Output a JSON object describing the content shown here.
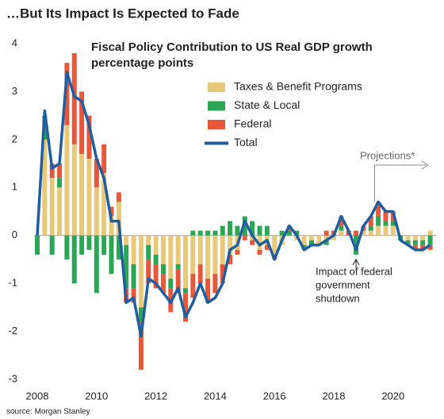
{
  "chart_data": {
    "type": "bar",
    "title": "…But Its Impact Is Expected to Fade",
    "subtitle": [
      "Fiscal Policy Contribution to US Real GDP growth",
      "percentage points"
    ],
    "source": "source: Morgan Stanley",
    "categories": [
      "2008",
      null,
      null,
      null,
      null,
      null,
      null,
      null,
      "2010",
      null,
      null,
      null,
      null,
      null,
      null,
      null,
      "2012",
      null,
      null,
      null,
      null,
      null,
      null,
      null,
      "2014",
      null,
      null,
      null,
      null,
      null,
      null,
      null,
      "2016",
      null,
      null,
      null,
      null,
      null,
      null,
      null,
      "2018",
      null,
      null,
      null,
      null,
      null,
      null,
      null,
      "2020",
      null,
      null,
      null,
      null,
      null
    ],
    "ylim": [
      -3,
      4
    ],
    "yticks": [
      -3,
      -2,
      -1,
      0,
      1,
      2,
      3,
      4
    ],
    "series": [
      {
        "name": "Taxes & Benefit Programs",
        "type": "bar",
        "color": "#e8c97a",
        "values": [
          0,
          2.0,
          1.2,
          1.0,
          2.3,
          1.9,
          1.7,
          1.6,
          1.0,
          1.3,
          0.4,
          0.7,
          -0.2,
          -0.6,
          -1.5,
          -0.2,
          -0.4,
          -0.6,
          -0.9,
          -0.6,
          -1.1,
          -0.8,
          -0.6,
          -0.9,
          -0.8,
          -0.6,
          -0.4,
          -0.3,
          0.0,
          -0.1,
          -0.3,
          -0.2,
          -0.4,
          -0.2,
          0.0,
          -0.1,
          -0.2,
          -0.1,
          -0.2,
          -0.1,
          -0.1,
          0.1,
          0.0,
          0.0,
          0.1,
          0.1,
          0.2,
          0.2,
          0.2,
          0.0,
          -0.1,
          -0.1,
          -0.1,
          0.1
        ]
      },
      {
        "name": "State & Local",
        "type": "bar",
        "color": "#2aa654",
        "values": [
          -0.4,
          0.2,
          -0.4,
          0.2,
          -0.5,
          -1.0,
          -0.4,
          -0.3,
          -1.2,
          -0.4,
          -0.8,
          -0.5,
          -0.9,
          -0.5,
          -0.3,
          -0.3,
          -0.2,
          -0.2,
          -0.2,
          -0.1,
          -0.1,
          0.1,
          0.1,
          0.1,
          0.1,
          0.2,
          0.3,
          0.2,
          0.4,
          0.3,
          0.2,
          0.2,
          0.0,
          0.1,
          0.1,
          0.1,
          -0.1,
          -0.1,
          0.0,
          -0.1,
          0.0,
          0.1,
          0.0,
          -0.4,
          0.0,
          0.1,
          0.2,
          0.1,
          0.1,
          -0.1,
          -0.1,
          -0.1,
          -0.1,
          -0.2
        ]
      },
      {
        "name": "Federal",
        "type": "bar",
        "color": "#e8573a",
        "values": [
          0,
          0.3,
          0.3,
          0.3,
          1.3,
          1.9,
          1.3,
          0.9,
          0.6,
          0.6,
          0.2,
          0.2,
          -0.3,
          -0.3,
          -1.0,
          -0.5,
          -0.5,
          -0.4,
          -0.5,
          -0.5,
          -0.6,
          -0.5,
          -0.4,
          -0.5,
          -0.4,
          -0.4,
          -0.2,
          -0.1,
          -0.1,
          -0.1,
          -0.1,
          -0.1,
          -0.1,
          0.0,
          0.1,
          0.0,
          0.0,
          0.0,
          0.0,
          0.1,
          0.1,
          0.2,
          0.1,
          0.1,
          0.1,
          0.2,
          0.3,
          0.2,
          0.2,
          0.0,
          0.0,
          -0.1,
          -0.1,
          -0.1
        ]
      },
      {
        "name": "Total",
        "type": "line",
        "color": "#1f5fa0",
        "values": [
          0.0,
          2.6,
          1.4,
          1.5,
          3.4,
          2.9,
          2.8,
          2.3,
          1.6,
          1.2,
          0.3,
          0.3,
          -1.4,
          -1.3,
          -2.1,
          -0.9,
          -1.0,
          -1.2,
          -1.4,
          -1.1,
          -1.7,
          -1.4,
          -1.0,
          -1.4,
          -1.3,
          -1.0,
          -0.3,
          -0.2,
          0.3,
          0.0,
          -0.2,
          -0.1,
          -0.5,
          -0.1,
          0.2,
          0.0,
          -0.3,
          -0.2,
          -0.2,
          -0.1,
          0.0,
          0.4,
          0.1,
          -0.3,
          0.2,
          0.4,
          0.7,
          0.5,
          0.5,
          -0.1,
          -0.2,
          -0.3,
          -0.3,
          -0.2
        ]
      }
    ],
    "annotations": [
      {
        "text": [
          "Projections*"
        ]
      },
      {
        "text": [
          "Impact of federal",
          "government",
          "shutdown"
        ]
      }
    ]
  }
}
